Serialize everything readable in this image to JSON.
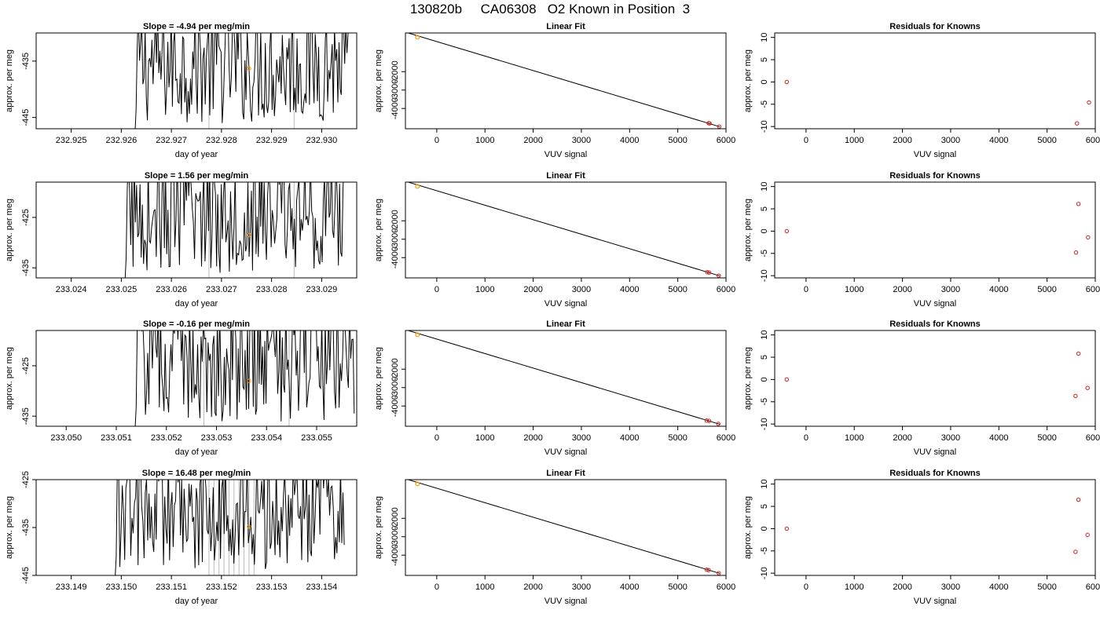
{
  "page": {
    "title": "130820b     CA06308   O2 Known in Position  3"
  },
  "chart_data": [
    {
      "type": "line",
      "title": "Slope =  -4.94  per meg/min",
      "xlabel": "day of year",
      "ylabel": "approx. per meg",
      "xlim": [
        232.9243,
        232.9307
      ],
      "ylim": [
        -447,
        -430
      ],
      "xticks": [
        232.925,
        232.926,
        232.927,
        232.928,
        232.929,
        232.93
      ],
      "xtick_labels": [
        "232.925",
        "232.926",
        "232.927",
        "232.928",
        "232.929",
        "232.930"
      ],
      "yticks": [
        -435,
        -445
      ],
      "ytick_labels": [
        "-435",
        "-445"
      ],
      "x_start": 232.92625,
      "x_end": 232.93055,
      "mean_marker": {
        "x": 232.92855,
        "y": -436.3
      },
      "vlines": [
        232.92775,
        232.92945
      ]
    },
    {
      "type": "scatter",
      "title": "Linear Fit",
      "xlabel": "VUV signal",
      "ylabel": "approx. per meg",
      "xlim": [
        -650,
        6000
      ],
      "ylim": [
        -5100,
        100
      ],
      "xticks": [
        0,
        1000,
        2000,
        3000,
        4000,
        5000,
        6000
      ],
      "xtick_labels": [
        "0",
        "1000",
        "2000",
        "3000",
        "4000",
        "5000",
        "6000"
      ],
      "yticks": [
        -2000,
        -3000,
        -4000
      ],
      "ytick_labels": [
        "-2000",
        "-3000",
        "-4000"
      ],
      "fit_line": [
        [
          -650,
          145
        ],
        [
          5870,
          -4990
        ]
      ],
      "knowns": [
        {
          "x": 5640,
          "y": -4800
        },
        {
          "x": 5660,
          "y": -4810
        },
        {
          "x": 5860,
          "y": -4980
        }
      ],
      "unknown": {
        "x": -400,
        "y": -130
      }
    },
    {
      "type": "scatter",
      "title": "Residuals for Knowns",
      "xlabel": "VUV signal",
      "ylabel": "approx. per meg",
      "xlim": [
        -650,
        6000
      ],
      "ylim": [
        -10.5,
        11
      ],
      "xticks": [
        0,
        1000,
        2000,
        3000,
        4000,
        5000,
        6000
      ],
      "xtick_labels": [
        "0",
        "1000",
        "2000",
        "3000",
        "4000",
        "5000",
        "6000"
      ],
      "yticks": [
        10,
        5,
        0,
        -5,
        -10
      ],
      "ytick_labels": [
        "10",
        "5",
        "0",
        "-5",
        "-10"
      ],
      "points": [
        {
          "x": -400,
          "y": 0
        },
        {
          "x": 5620,
          "y": -9.3
        },
        {
          "x": 5870,
          "y": -4.6
        }
      ]
    },
    {
      "type": "line",
      "title": "Slope =  1.56  per meg/min",
      "xlabel": "day of year",
      "ylabel": "approx. per meg",
      "xlim": [
        233.0233,
        233.0297
      ],
      "ylim": [
        -437,
        -418
      ],
      "xticks": [
        233.024,
        233.025,
        233.026,
        233.027,
        233.028,
        233.029
      ],
      "xtick_labels": [
        "233.024",
        "233.025",
        "233.026",
        "233.027",
        "233.028",
        "233.029"
      ],
      "yticks": [
        -425,
        -435
      ],
      "ytick_labels": [
        "-425",
        "-435"
      ],
      "x_start": 233.02505,
      "x_end": 233.02945,
      "mean_marker": {
        "x": 233.02755,
        "y": -428.5
      },
      "vlines": [
        233.02675,
        233.02845
      ]
    },
    {
      "type": "scatter",
      "title": "Linear Fit",
      "xlabel": "VUV signal",
      "ylabel": "approx. per meg",
      "xlim": [
        -650,
        6000
      ],
      "ylim": [
        -5100,
        100
      ],
      "xticks": [
        0,
        1000,
        2000,
        3000,
        4000,
        5000,
        6000
      ],
      "xtick_labels": [
        "0",
        "1000",
        "2000",
        "3000",
        "4000",
        "5000",
        "6000"
      ],
      "yticks": [
        -2000,
        -3000,
        -4000
      ],
      "ytick_labels": [
        "-2000",
        "-3000",
        "-4000"
      ],
      "fit_line": [
        [
          -650,
          145
        ],
        [
          5870,
          -4990
        ]
      ],
      "knowns": [
        {
          "x": 5610,
          "y": -4790
        },
        {
          "x": 5650,
          "y": -4810
        },
        {
          "x": 5850,
          "y": -4980
        }
      ],
      "unknown": {
        "x": -400,
        "y": -130
      }
    },
    {
      "type": "scatter",
      "title": "Residuals for Knowns",
      "xlabel": "VUV signal",
      "ylabel": "approx. per meg",
      "xlim": [
        -650,
        6000
      ],
      "ylim": [
        -10.5,
        11
      ],
      "xticks": [
        0,
        1000,
        2000,
        3000,
        4000,
        5000,
        6000
      ],
      "xtick_labels": [
        "0",
        "1000",
        "2000",
        "3000",
        "4000",
        "5000",
        "6000"
      ],
      "yticks": [
        10,
        5,
        0,
        -5,
        -10
      ],
      "ytick_labels": [
        "10",
        "5",
        "0",
        "-5",
        "-10"
      ],
      "points": [
        {
          "x": -400,
          "y": 0
        },
        {
          "x": 5600,
          "y": -4.8
        },
        {
          "x": 5650,
          "y": 6.1
        },
        {
          "x": 5850,
          "y": -1.4
        }
      ]
    },
    {
      "type": "line",
      "title": "Slope =  -0.16  per meg/min",
      "xlabel": "day of year",
      "ylabel": "approx. per meg",
      "xlim": [
        233.0494,
        233.0558
      ],
      "ylim": [
        -437,
        -418
      ],
      "xticks": [
        233.05,
        233.051,
        233.052,
        233.053,
        233.054,
        233.055
      ],
      "xtick_labels": [
        "233.050",
        "233.051",
        "233.052",
        "233.053",
        "233.054",
        "233.055"
      ],
      "yticks": [
        -425,
        -435
      ],
      "ytick_labels": [
        "-425",
        "-435"
      ],
      "x_start": 233.05135,
      "x_end": 233.05575,
      "mean_marker": {
        "x": 233.05365,
        "y": -428.0
      },
      "vlines": [
        233.05275,
        233.05445
      ]
    },
    {
      "type": "scatter",
      "title": "Linear Fit",
      "xlabel": "VUV signal",
      "ylabel": "approx. per meg",
      "xlim": [
        -650,
        6000
      ],
      "ylim": [
        -5100,
        100
      ],
      "xticks": [
        0,
        1000,
        2000,
        3000,
        4000,
        5000,
        6000
      ],
      "xtick_labels": [
        "0",
        "1000",
        "2000",
        "3000",
        "4000",
        "5000",
        "6000"
      ],
      "yticks": [
        -2000,
        -3000,
        -4000
      ],
      "ytick_labels": [
        "-2000",
        "-3000",
        "-4000"
      ],
      "fit_line": [
        [
          -650,
          145
        ],
        [
          5870,
          -4990
        ]
      ],
      "knowns": [
        {
          "x": 5600,
          "y": -4790
        },
        {
          "x": 5650,
          "y": -4810
        },
        {
          "x": 5840,
          "y": -4970
        }
      ],
      "unknown": {
        "x": -400,
        "y": -130
      }
    },
    {
      "type": "scatter",
      "title": "Residuals for Knowns",
      "xlabel": "VUV signal",
      "ylabel": "approx. per meg",
      "xlim": [
        -650,
        6000
      ],
      "ylim": [
        -10.5,
        11
      ],
      "xticks": [
        0,
        1000,
        2000,
        3000,
        4000,
        5000,
        6000
      ],
      "xtick_labels": [
        "0",
        "1000",
        "2000",
        "3000",
        "4000",
        "5000",
        "6000"
      ],
      "yticks": [
        10,
        5,
        0,
        -5,
        -10
      ],
      "ytick_labels": [
        "10",
        "5",
        "0",
        "-5",
        "-10"
      ],
      "points": [
        {
          "x": -400,
          "y": 0
        },
        {
          "x": 5590,
          "y": -3.7
        },
        {
          "x": 5650,
          "y": 5.8
        },
        {
          "x": 5840,
          "y": -1.9
        }
      ]
    },
    {
      "type": "line",
      "title": "Slope =  16.48  per meg/min",
      "xlabel": "day of year",
      "ylabel": "approx. per meg",
      "xlim": [
        233.1483,
        233.1547
      ],
      "ylim": [
        -445,
        -425
      ],
      "xticks": [
        233.149,
        233.15,
        233.151,
        233.152,
        233.153,
        233.154
      ],
      "xtick_labels": [
        "233.149",
        "233.150",
        "233.151",
        "233.152",
        "233.153",
        "233.154"
      ],
      "yticks": [
        -425,
        -435,
        -445
      ],
      "ytick_labels": [
        "-425",
        "-435",
        "-445"
      ],
      "x_start": 233.14985,
      "x_end": 233.15445,
      "mean_marker": {
        "x": 233.15255,
        "y": -434.8
      },
      "vlines": [
        233.15175,
        233.15185,
        233.15195,
        233.15205,
        233.15215,
        233.15225,
        233.15235,
        233.15245,
        233.15255,
        233.15265
      ]
    },
    {
      "type": "scatter",
      "title": "Linear Fit",
      "xlabel": "VUV signal",
      "ylabel": "approx. per meg",
      "xlim": [
        -650,
        6000
      ],
      "ylim": [
        -5100,
        100
      ],
      "xticks": [
        0,
        1000,
        2000,
        3000,
        4000,
        5000,
        6000
      ],
      "xtick_labels": [
        "0",
        "1000",
        "2000",
        "3000",
        "4000",
        "5000",
        "6000"
      ],
      "yticks": [
        -2000,
        -3000,
        -4000
      ],
      "ytick_labels": [
        "-2000",
        "-3000",
        "-4000"
      ],
      "fit_line": [
        [
          -650,
          145
        ],
        [
          5870,
          -4990
        ]
      ],
      "knowns": [
        {
          "x": 5600,
          "y": -4790
        },
        {
          "x": 5640,
          "y": -4810
        },
        {
          "x": 5850,
          "y": -4980
        }
      ],
      "unknown": {
        "x": -400,
        "y": -130
      }
    },
    {
      "type": "scatter",
      "title": "Residuals for Knowns",
      "xlabel": "VUV signal",
      "ylabel": "approx. per meg",
      "xlim": [
        -650,
        6000
      ],
      "ylim": [
        -10.5,
        11
      ],
      "xticks": [
        0,
        1000,
        2000,
        3000,
        4000,
        5000,
        6000
      ],
      "xtick_labels": [
        "0",
        "1000",
        "2000",
        "3000",
        "4000",
        "5000",
        "6000"
      ],
      "yticks": [
        10,
        5,
        0,
        -5,
        -10
      ],
      "ytick_labels": [
        "10",
        "5",
        "0",
        "-5",
        "-10"
      ],
      "points": [
        {
          "x": -400,
          "y": 0
        },
        {
          "x": 5590,
          "y": -5.2
        },
        {
          "x": 5650,
          "y": 6.5
        },
        {
          "x": 5840,
          "y": -1.4
        }
      ]
    }
  ]
}
